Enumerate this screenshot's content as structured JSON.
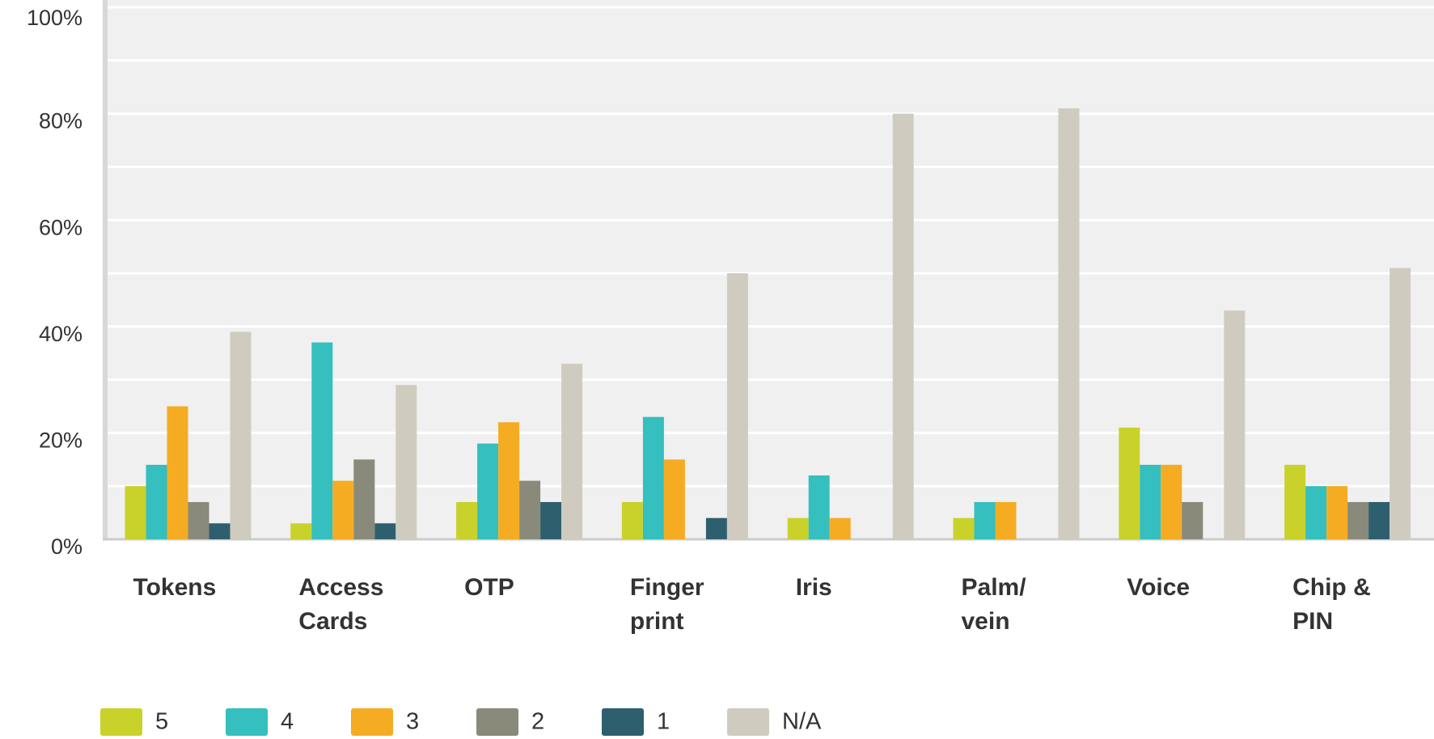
{
  "chart_data": {
    "type": "bar",
    "categories": [
      "Tokens",
      "Access\nCards",
      "OTP",
      "Finger\nprint",
      "Iris",
      "Palm/\nvein",
      "Voice",
      "Chip &\nPIN"
    ],
    "series": [
      {
        "name": "5",
        "color": "#c9d22a",
        "values": [
          10,
          3,
          7,
          7,
          4,
          4,
          21,
          14
        ]
      },
      {
        "name": "4",
        "color": "#35bfbf",
        "values": [
          14,
          37,
          18,
          23,
          12,
          7,
          14,
          10
        ]
      },
      {
        "name": "3",
        "color": "#f5ac23",
        "values": [
          25,
          11,
          22,
          15,
          4,
          7,
          14,
          10
        ]
      },
      {
        "name": "2",
        "color": "#898a79",
        "values": [
          7,
          15,
          11,
          0,
          0,
          0,
          7,
          7
        ]
      },
      {
        "name": "1",
        "color": "#2e5f6e",
        "values": [
          3,
          3,
          7,
          4,
          0,
          0,
          0,
          7
        ]
      },
      {
        "name": "N/A",
        "color": "#cfccbf",
        "values": [
          39,
          29,
          33,
          50,
          80,
          81,
          43,
          51
        ]
      }
    ],
    "ylim": [
      0,
      100
    ],
    "yticks": [
      {
        "value": 0,
        "label": "0%"
      },
      {
        "value": 20,
        "label": "20%"
      },
      {
        "value": 40,
        "label": "40%"
      },
      {
        "value": 60,
        "label": "60%"
      },
      {
        "value": 80,
        "label": "80%"
      },
      {
        "value": 100,
        "label": "100%"
      }
    ],
    "minor_yticks": [
      10,
      30,
      50,
      70,
      90
    ],
    "grid": true,
    "legend": "bottom"
  }
}
